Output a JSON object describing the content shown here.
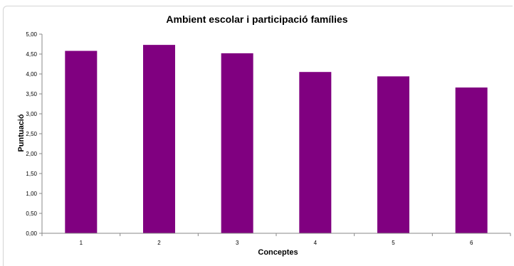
{
  "chart_data": {
    "type": "bar",
    "title": "Ambient escolar i participació famílies",
    "xlabel": "Conceptes",
    "ylabel": "Puntuació",
    "categories": [
      "1",
      "2",
      "3",
      "4",
      "5",
      "6"
    ],
    "values": [
      4.58,
      4.73,
      4.52,
      4.05,
      3.94,
      3.66
    ],
    "ylim": [
      0,
      5
    ],
    "yticks": [
      "0,00",
      "0,50",
      "1,00",
      "1,50",
      "2,00",
      "2,50",
      "3,00",
      "3,50",
      "4,00",
      "4,50",
      "5,00"
    ],
    "ytick_values": [
      0,
      0.5,
      1,
      1.5,
      2,
      2.5,
      3,
      3.5,
      4,
      4.5,
      5
    ],
    "bar_color": "#800080",
    "grid": false,
    "legend": "none"
  }
}
